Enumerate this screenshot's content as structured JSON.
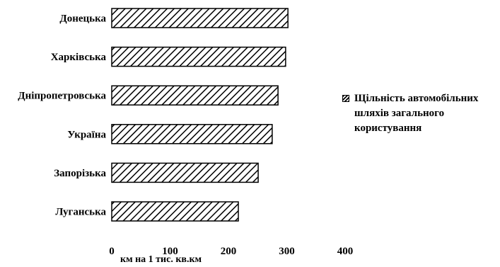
{
  "chart_data": {
    "type": "bar",
    "orientation": "horizontal",
    "categories": [
      "Донецька",
      "Харківська",
      "Дніпропетровська",
      "Україна",
      "Запорізька",
      "Луганська"
    ],
    "series": [
      {
        "name": "Щільність автомобільних шляхів загального користування",
        "values": [
          302,
          298,
          285,
          275,
          251,
          217
        ]
      }
    ],
    "xlabel": "км на 1 тис. кв.км",
    "ylabel": "",
    "xlim": [
      0,
      400
    ],
    "xticks": [
      "0",
      "100",
      "200",
      "300",
      "400"
    ],
    "grid": false,
    "legend_position": "right"
  }
}
